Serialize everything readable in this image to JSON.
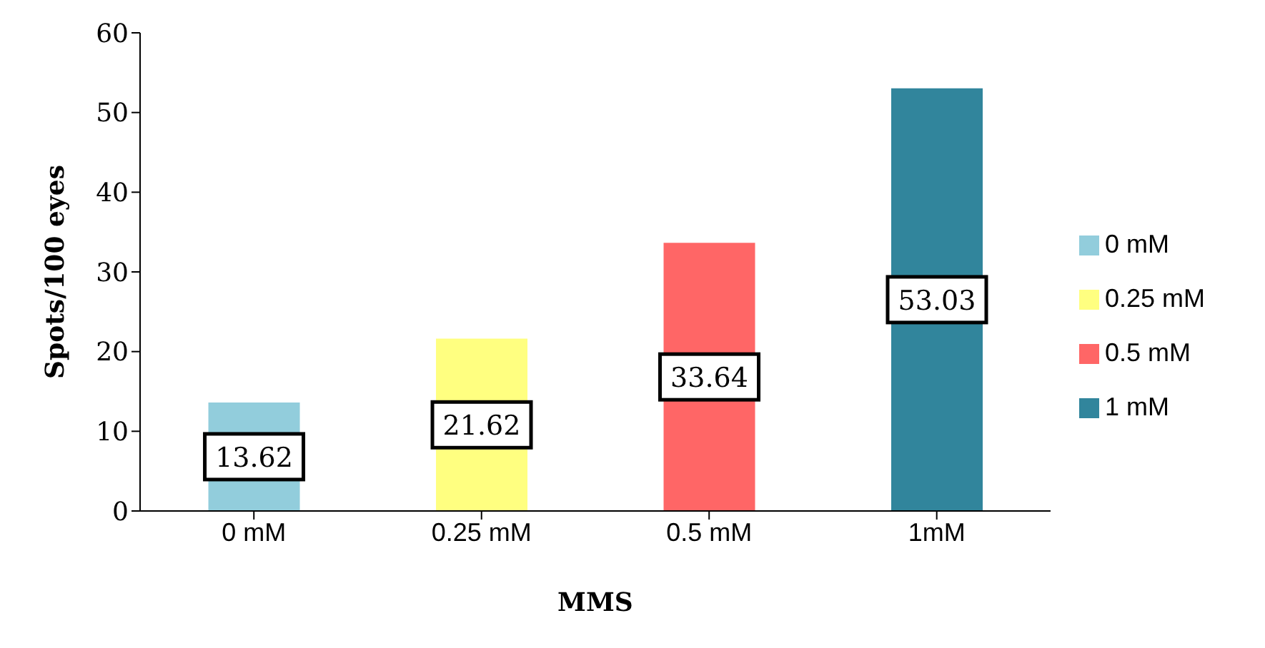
{
  "chart_data": {
    "type": "bar",
    "xlabel": "MMS",
    "ylabel": "Spots/100 eyes",
    "categories": [
      "0 mM",
      "0.25 mM",
      "0.5 mM",
      "1mM"
    ],
    "stacked": true,
    "series": [
      {
        "name": "0 mM",
        "color": "#92cddc",
        "values": [
          13.62,
          null,
          null,
          null
        ]
      },
      {
        "name": "0.25 mM",
        "color": "#ffff80",
        "values": [
          null,
          21.62,
          null,
          null
        ]
      },
      {
        "name": "0.5 mM",
        "color": "#ff6666",
        "values": [
          null,
          null,
          33.64,
          null
        ]
      },
      {
        "name": "1 mM",
        "color": "#31859c",
        "values": [
          null,
          null,
          null,
          53.03
        ]
      }
    ],
    "ylim": [
      0,
      60
    ],
    "yticks": [
      0,
      10,
      20,
      30,
      40,
      50,
      60
    ],
    "data_labels": true,
    "grid": false,
    "legend": "right"
  }
}
